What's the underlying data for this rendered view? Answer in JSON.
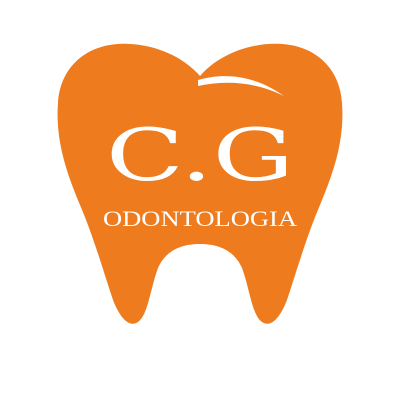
{
  "logo": {
    "initials": "C.G",
    "subtitle": "ODONTOLOGIA",
    "icon": "tooth-icon",
    "colors": {
      "tooth": "#ef7b1f",
      "text": "#ffffff",
      "background": "#ffffff"
    }
  }
}
